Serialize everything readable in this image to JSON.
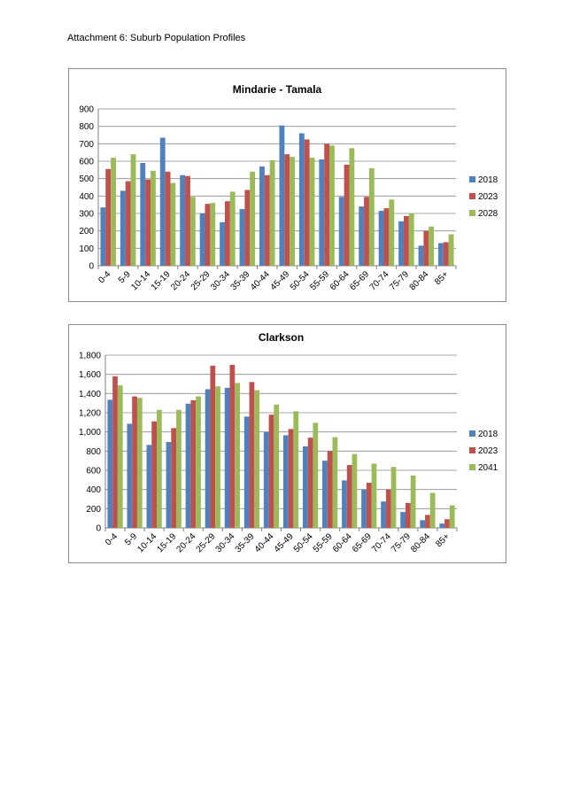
{
  "page": {
    "heading": "Attachment 6: Suburb Population Profiles"
  },
  "chart_data": [
    {
      "type": "bar",
      "title": "Mindarie - Tamala",
      "categories": [
        "0-4",
        "5-9",
        "10-14",
        "15-19",
        "20-24",
        "25-29",
        "30-34",
        "35-39",
        "40-44",
        "45-49",
        "50-54",
        "55-59",
        "60-64",
        "65-69",
        "70-74",
        "75-79",
        "80-84",
        "85+"
      ],
      "series": [
        {
          "name": "2018",
          "color": "#4f81bd",
          "values": [
            335,
            430,
            590,
            735,
            520,
            300,
            250,
            325,
            570,
            805,
            760,
            610,
            395,
            340,
            315,
            255,
            115,
            130
          ]
        },
        {
          "name": "2023",
          "color": "#c0504d",
          "values": [
            555,
            485,
            495,
            540,
            515,
            355,
            370,
            435,
            520,
            640,
            725,
            700,
            580,
            395,
            330,
            285,
            200,
            135
          ]
        },
        {
          "name": "2028",
          "color": "#9bbb59",
          "values": [
            620,
            640,
            545,
            475,
            395,
            360,
            425,
            540,
            605,
            625,
            620,
            690,
            675,
            560,
            380,
            300,
            225,
            180
          ]
        }
      ],
      "ylim": [
        0,
        900
      ],
      "yticks": [
        0,
        100,
        200,
        300,
        400,
        500,
        600,
        700,
        800,
        900
      ],
      "ytick_labels": [
        "0",
        "100",
        "200",
        "300",
        "400",
        "500",
        "600",
        "700",
        "800",
        "900"
      ],
      "grid": true,
      "legend": "right"
    },
    {
      "type": "bar",
      "title": "Clarkson",
      "categories": [
        "0-4",
        "5-9",
        "10-14",
        "15-19",
        "20-24",
        "25-29",
        "30-34",
        "35-39",
        "40-44",
        "45-49",
        "50-54",
        "55-59",
        "60-64",
        "65-69",
        "70-74",
        "75-79",
        "80-84",
        "85+"
      ],
      "series": [
        {
          "name": "2018",
          "color": "#4f81bd",
          "values": [
            1335,
            1085,
            865,
            895,
            1295,
            1445,
            1460,
            1160,
            1000,
            965,
            850,
            700,
            495,
            400,
            275,
            165,
            80,
            45
          ]
        },
        {
          "name": "2023",
          "color": "#c0504d",
          "values": [
            1580,
            1370,
            1110,
            1040,
            1330,
            1690,
            1700,
            1520,
            1180,
            1030,
            940,
            800,
            655,
            470,
            400,
            260,
            135,
            90
          ]
        },
        {
          "name": "2041",
          "color": "#9bbb59",
          "values": [
            1485,
            1355,
            1230,
            1230,
            1370,
            1475,
            1510,
            1435,
            1285,
            1215,
            1095,
            945,
            770,
            670,
            635,
            545,
            365,
            235
          ]
        }
      ],
      "ylim": [
        0,
        1800
      ],
      "yticks": [
        0,
        200,
        400,
        600,
        800,
        1000,
        1200,
        1400,
        1600,
        1800
      ],
      "ytick_labels": [
        "0",
        "200",
        "400",
        "600",
        "800",
        "1,000",
        "1,200",
        "1,400",
        "1,600",
        "1,800"
      ],
      "grid": true,
      "legend": "right"
    }
  ]
}
